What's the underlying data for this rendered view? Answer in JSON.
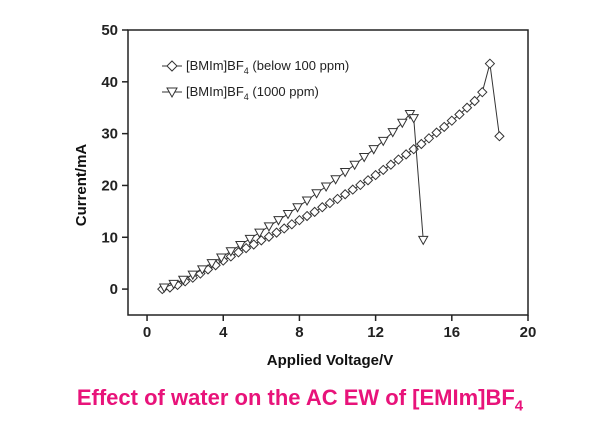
{
  "chart_data": {
    "type": "scatter",
    "xlabel": "Applied Voltage/V",
    "ylabel": "Current/mA",
    "xlim": [
      -1,
      20
    ],
    "ylim": [
      -5,
      50
    ],
    "xticks": [
      0,
      4,
      8,
      12,
      16,
      20
    ],
    "yticks": [
      0,
      10,
      20,
      30,
      40,
      50
    ],
    "legend": {
      "position": "top-left"
    },
    "series": [
      {
        "name_main": "[BMIm]BF",
        "name_sub": "4",
        "name_tail": " (below 100 ppm)",
        "marker": "diamond",
        "x": [
          0.8,
          1.2,
          1.6,
          2.0,
          2.4,
          2.8,
          3.2,
          3.6,
          4.0,
          4.4,
          4.8,
          5.2,
          5.6,
          6.0,
          6.4,
          6.8,
          7.2,
          7.6,
          8.0,
          8.4,
          8.8,
          9.2,
          9.6,
          10.0,
          10.4,
          10.8,
          11.2,
          11.6,
          12.0,
          12.4,
          12.8,
          13.2,
          13.6,
          14.0,
          14.4,
          14.8,
          15.2,
          15.6,
          16.0,
          16.4,
          16.8,
          17.2,
          17.6,
          18.0,
          18.5
        ],
        "y": [
          0.0,
          0.3,
          0.8,
          1.5,
          2.2,
          3.0,
          3.8,
          4.6,
          5.5,
          6.3,
          7.1,
          7.9,
          8.6,
          9.4,
          10.1,
          10.9,
          11.7,
          12.5,
          13.3,
          14.1,
          14.9,
          15.8,
          16.6,
          17.4,
          18.3,
          19.2,
          20.1,
          21.0,
          22.0,
          23.0,
          24.0,
          25.0,
          26.0,
          27.0,
          28.0,
          29.1,
          30.2,
          31.3,
          32.5,
          33.7,
          35.0,
          36.3,
          38.0,
          43.5,
          29.5
        ]
      },
      {
        "name_main": "[BMIm]BF",
        "name_sub": "4",
        "name_tail": " (1000 ppm)",
        "marker": "triangle-down",
        "x": [
          0.9,
          1.4,
          1.9,
          2.4,
          2.9,
          3.4,
          3.9,
          4.4,
          4.9,
          5.4,
          5.9,
          6.4,
          6.9,
          7.4,
          7.9,
          8.4,
          8.9,
          9.4,
          9.9,
          10.4,
          10.9,
          11.4,
          11.9,
          12.4,
          12.9,
          13.4,
          13.8,
          14.0,
          14.5
        ],
        "y": [
          0.3,
          1.0,
          1.8,
          2.8,
          3.8,
          5.0,
          6.1,
          7.3,
          8.5,
          9.7,
          10.9,
          12.1,
          13.3,
          14.5,
          15.8,
          17.1,
          18.5,
          19.8,
          21.2,
          22.6,
          24.0,
          25.5,
          27.0,
          28.6,
          30.3,
          32.1,
          33.8,
          33.0,
          9.5
        ]
      }
    ]
  },
  "caption": {
    "main": "Effect of water on the AC EW of [EMIm]BF",
    "sub": "4"
  }
}
